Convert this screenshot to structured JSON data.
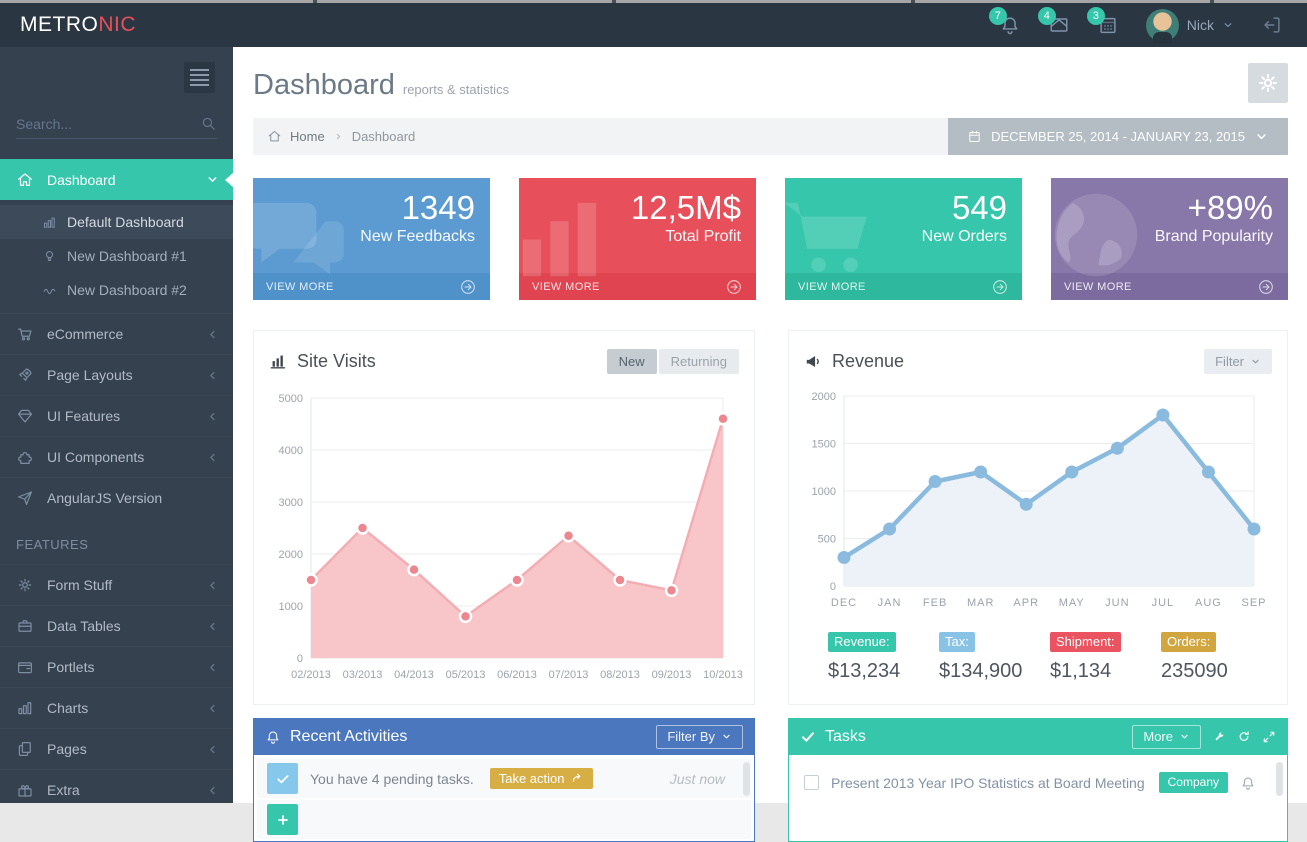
{
  "topbar": {
    "logo_primary": "METRO",
    "logo_accent": "NIC",
    "badge_color": "#36c6ab",
    "notifications": [
      {
        "icon": "bell-icon",
        "count": "7"
      },
      {
        "icon": "envelope-icon",
        "count": "4"
      },
      {
        "icon": "calendar-icon",
        "count": "3"
      }
    ],
    "user": {
      "name": "Nick"
    }
  },
  "sidebar": {
    "search_placeholder": "Search...",
    "active_color": "#36c6ab",
    "section_label": "FEATURES",
    "items": [
      {
        "label": "Dashboard",
        "icon": "home-icon",
        "active": true,
        "children": [
          {
            "label": "Default Dashboard",
            "icon": "bar-chart-icon",
            "active": true
          },
          {
            "label": "New Dashboard #1",
            "icon": "lightbulb-icon"
          },
          {
            "label": "New Dashboard #2",
            "icon": "trend-icon"
          }
        ]
      },
      {
        "label": "eCommerce",
        "icon": "cart-icon"
      },
      {
        "label": "Page Layouts",
        "icon": "rocket-icon"
      },
      {
        "label": "UI Features",
        "icon": "diamond-icon"
      },
      {
        "label": "UI Components",
        "icon": "puzzle-icon"
      },
      {
        "label": "AngularJS Version",
        "icon": "send-icon"
      },
      {
        "label": "Form Stuff",
        "icon": "gear-icon"
      },
      {
        "label": "Data Tables",
        "icon": "briefcase-icon"
      },
      {
        "label": "Portlets",
        "icon": "wallet-icon"
      },
      {
        "label": "Charts",
        "icon": "bar-chart-icon"
      },
      {
        "label": "Pages",
        "icon": "pages-icon"
      },
      {
        "label": "Extra",
        "icon": "gift-icon"
      }
    ]
  },
  "page": {
    "title": "Dashboard",
    "subtitle": "reports & statistics",
    "breadcrumb": [
      "Home",
      "Dashboard"
    ],
    "date_range": "DECEMBER 25, 2014 - JANUARY 23, 2015"
  },
  "stat_cards": [
    {
      "value": "1349",
      "label": "New Feedbacks",
      "footer": "VIEW MORE",
      "color": "#5b9bd1",
      "footer_color": "#4f91c9",
      "watermark": "comments-icon"
    },
    {
      "value": "12,5M$",
      "label": "Total Profit",
      "footer": "VIEW MORE",
      "color": "#e7505a",
      "footer_color": "#df4450",
      "watermark": "bars-icon"
    },
    {
      "value": "549",
      "label": "New Orders",
      "footer": "VIEW MORE",
      "color": "#36c6ab",
      "footer_color": "#2eb89d",
      "watermark": "cart-icon"
    },
    {
      "value": "+89%",
      "label": "Brand Popularity",
      "footer": "VIEW MORE",
      "color": "#8877a9",
      "footer_color": "#7c6b9e",
      "watermark": "globe-icon"
    }
  ],
  "portlets": {
    "site_visits": {
      "title": "Site Visits",
      "toggles": [
        "New",
        "Returning"
      ],
      "active_toggle": "New"
    },
    "revenue": {
      "title": "Revenue",
      "filter_label": "Filter",
      "stats": [
        {
          "label": "Revenue:",
          "value": "$13,234",
          "color": "#36c6ab"
        },
        {
          "label": "Tax:",
          "value": "$134,900",
          "color": "#88c3e6"
        },
        {
          "label": "Shipment:",
          "value": "$1,134",
          "color": "#ea5460"
        },
        {
          "label": "Orders:",
          "value": "235090",
          "color": "#d2a63e"
        }
      ]
    },
    "recent_activities": {
      "title": "Recent Activities",
      "header_color": "#4a77bd",
      "filter_label": "Filter By",
      "items": [
        {
          "text": "You have 4 pending tasks.",
          "action_label": "Take action",
          "action_color": "#d6ae43",
          "time": "Just now",
          "icon_color": "#85c8ec"
        },
        {
          "text": "",
          "action_label": "",
          "time": "",
          "icon_color": "#36c6ab"
        }
      ]
    },
    "tasks": {
      "title": "Tasks",
      "header_color": "#36c6ab",
      "more_label": "More",
      "items": [
        {
          "text": "Present 2013 Year IPO Statistics at Board Meeting",
          "badge": "Company",
          "badge_color": "#36c6ab"
        }
      ]
    }
  },
  "chart_data": [
    {
      "type": "area",
      "title": "Site Visits",
      "categories": [
        "02/2013",
        "03/2013",
        "04/2013",
        "05/2013",
        "06/2013",
        "07/2013",
        "08/2013",
        "09/2013",
        "10/2013"
      ],
      "values": [
        1500,
        2500,
        1700,
        800,
        1500,
        2350,
        1500,
        1300,
        4600
      ],
      "xlabel": "",
      "ylabel": "",
      "ylim": [
        0,
        5000
      ],
      "ytick_step": 1000,
      "grid": true,
      "legend": "none",
      "colors": {
        "line": "#f2aeb3",
        "fill": "#f8c5c8",
        "marker": "#ec8790",
        "marker_stroke": "#ffffff"
      }
    },
    {
      "type": "line",
      "title": "Revenue",
      "categories": [
        "DEC",
        "JAN",
        "FEB",
        "MAR",
        "APR",
        "MAY",
        "JUN",
        "JUL",
        "AUG",
        "SEP"
      ],
      "values": [
        300,
        600,
        1100,
        1200,
        860,
        1200,
        1450,
        1800,
        1200,
        600
      ],
      "xlabel": "",
      "ylabel": "",
      "ylim": [
        0,
        2000
      ],
      "ytick_step": 500,
      "grid": true,
      "legend": "none",
      "colors": {
        "line": "#8abbde",
        "fill": "#edf2f9",
        "marker": "#8abbde"
      }
    }
  ]
}
